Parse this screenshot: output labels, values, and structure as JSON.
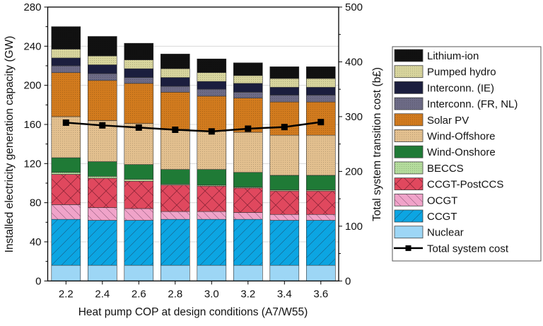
{
  "chart_data": {
    "type": "bar",
    "stacked": true,
    "xlabel": "Heat pump COP at design conditions (A7/W55)",
    "ylabel": "Installed electricity generation capacity (GW)",
    "y2label": "Total system transition cost (b£)",
    "categories": [
      "2.2",
      "2.4",
      "2.6",
      "2.8",
      "3.0",
      "3.2",
      "3.4",
      "3.6"
    ],
    "ylim": [
      0,
      280
    ],
    "yticks": [
      0,
      40,
      80,
      120,
      160,
      200,
      240,
      280
    ],
    "y2lim": [
      0,
      500
    ],
    "y2ticks": [
      0,
      100,
      200,
      300,
      400,
      500
    ],
    "grid": true,
    "legend_position": "right",
    "series": [
      {
        "name": "Nuclear",
        "color": "#9dd6f5",
        "pattern": "none",
        "values": [
          16,
          16,
          16,
          16,
          16,
          16,
          16,
          16
        ]
      },
      {
        "name": "CCGT",
        "color": "#0ca5e2",
        "pattern": "diag-forward",
        "values": [
          47,
          46,
          46,
          47,
          47,
          47,
          46,
          46
        ]
      },
      {
        "name": "OCGT",
        "color": "#f0a3c9",
        "pattern": "diag-back",
        "values": [
          15,
          13,
          12,
          8,
          8,
          7,
          6,
          6
        ]
      },
      {
        "name": "CCGT-PostCCS",
        "color": "#e0485e",
        "pattern": "cross",
        "values": [
          31,
          30,
          28,
          27,
          26,
          25,
          24,
          24
        ]
      },
      {
        "name": "BECCS",
        "color": "#b4dc9c",
        "pattern": "dots",
        "values": [
          2,
          2,
          2,
          1,
          1,
          1,
          1,
          1
        ]
      },
      {
        "name": "Wind-Onshore",
        "color": "#1f7a36",
        "pattern": "none",
        "values": [
          15,
          15,
          15,
          15,
          16,
          15,
          15,
          15
        ]
      },
      {
        "name": "Wind-Offshore",
        "color": "#e3c08f",
        "pattern": "dots",
        "values": [
          42,
          42,
          42,
          41,
          39,
          41,
          41,
          41
        ]
      },
      {
        "name": "Solar PV",
        "color": "#d27b1e",
        "pattern": "dots",
        "values": [
          45,
          41,
          41,
          38,
          36,
          35,
          34,
          34
        ]
      },
      {
        "name": "Interconn. (FR, NL)",
        "color": "#6d6b86",
        "pattern": "dots",
        "values": [
          7,
          7,
          6,
          6,
          7,
          6,
          7,
          7
        ]
      },
      {
        "name": "Interconn. (IE)",
        "color": "#1b1e3e",
        "pattern": "none",
        "values": [
          8,
          9,
          9,
          9,
          8,
          9,
          8,
          8
        ]
      },
      {
        "name": "Pumped hydro",
        "color": "#d8d59d",
        "pattern": "dots",
        "values": [
          9,
          9,
          9,
          9,
          9,
          8,
          9,
          9
        ]
      },
      {
        "name": "Lithium-ion",
        "color": "#111111",
        "pattern": "dots",
        "values": [
          23,
          20,
          17,
          15,
          14,
          13,
          12,
          12
        ]
      }
    ],
    "line_series": {
      "name": "Total system cost",
      "axis": "right",
      "color": "#000000",
      "values": [
        289,
        284,
        280,
        276,
        273,
        278,
        281,
        290
      ]
    }
  }
}
